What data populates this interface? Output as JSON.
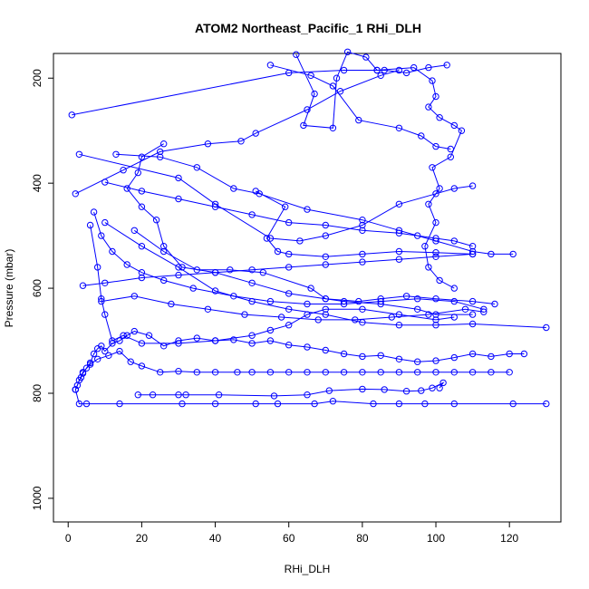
{
  "chart_data": {
    "type": "line",
    "title": "ATOM2 Northeast_Pacific_1 RHi_DLH",
    "xlabel": "RHi_DLH",
    "ylabel": "Pressure (mbar)",
    "xlim": [
      -4,
      134
    ],
    "ylim": [
      1045,
      153
    ],
    "y_axis_reversed": true,
    "x_ticks": [
      0,
      20,
      40,
      60,
      80,
      100,
      120
    ],
    "y_ticks": [
      200,
      400,
      600,
      800,
      1000
    ],
    "x_tick_labels": [
      "0",
      "20",
      "40",
      "60",
      "80",
      "100",
      "120"
    ],
    "y_tick_labels": [
      "200",
      "400",
      "600",
      "800",
      "1000"
    ],
    "grid": false,
    "legend": "none",
    "series_color": "#0000ff",
    "marker": "open-circle",
    "series": [
      {
        "points": [
          [
            2,
            793
          ],
          [
            2.5,
            785
          ],
          [
            3,
            775
          ],
          [
            3.5,
            770
          ],
          [
            4,
            762
          ],
          [
            5,
            752
          ],
          [
            6,
            742
          ],
          [
            7,
            725
          ],
          [
            8,
            715
          ],
          [
            9,
            710
          ],
          [
            10,
            720
          ],
          [
            12,
            705
          ],
          [
            14,
            700
          ],
          [
            16,
            690
          ],
          [
            18,
            682
          ],
          [
            22,
            690
          ],
          [
            26,
            710
          ],
          [
            30,
            700
          ],
          [
            35,
            695
          ],
          [
            40,
            700
          ],
          [
            45,
            698
          ],
          [
            50,
            705
          ],
          [
            55,
            700
          ],
          [
            60,
            708
          ],
          [
            65,
            712
          ],
          [
            70,
            718
          ],
          [
            75,
            725
          ],
          [
            80,
            730
          ],
          [
            85,
            728
          ],
          [
            90,
            735
          ],
          [
            95,
            740
          ],
          [
            100,
            738
          ],
          [
            105,
            732
          ],
          [
            110,
            725
          ],
          [
            115,
            730
          ],
          [
            120,
            725
          ],
          [
            124,
            725
          ]
        ]
      },
      {
        "points": [
          [
            2,
            793
          ],
          [
            3,
            820
          ],
          [
            5,
            820
          ],
          [
            14,
            820
          ],
          [
            31,
            820
          ],
          [
            40,
            820
          ],
          [
            51,
            820
          ],
          [
            57,
            820
          ],
          [
            67,
            820
          ],
          [
            72,
            815
          ],
          [
            83,
            820
          ],
          [
            90,
            820
          ],
          [
            97,
            820
          ],
          [
            105,
            820
          ],
          [
            121,
            820
          ],
          [
            130,
            820
          ]
        ]
      },
      {
        "points": [
          [
            2,
            793
          ],
          [
            4,
            760
          ],
          [
            6,
            745
          ],
          [
            8,
            735
          ],
          [
            11,
            728
          ],
          [
            14,
            720
          ],
          [
            17,
            740
          ],
          [
            20,
            748
          ],
          [
            25,
            760
          ],
          [
            30,
            758
          ],
          [
            35,
            760
          ],
          [
            40,
            760
          ],
          [
            46,
            760
          ],
          [
            50,
            760
          ],
          [
            55,
            760
          ],
          [
            60,
            760
          ],
          [
            65,
            760
          ],
          [
            70,
            760
          ],
          [
            75,
            760
          ],
          [
            80,
            760
          ],
          [
            85,
            760
          ],
          [
            90,
            760
          ],
          [
            95,
            760
          ],
          [
            100,
            760
          ],
          [
            105,
            760
          ],
          [
            110,
            760
          ],
          [
            115,
            760
          ],
          [
            120,
            760
          ]
        ]
      },
      {
        "points": [
          [
            19,
            803
          ],
          [
            23,
            803
          ],
          [
            30,
            803
          ],
          [
            32,
            803
          ],
          [
            41,
            803
          ],
          [
            56,
            805
          ],
          [
            65,
            803
          ],
          [
            71,
            795
          ],
          [
            80,
            792
          ],
          [
            86,
            793
          ],
          [
            92,
            796
          ],
          [
            96,
            795
          ],
          [
            99,
            790
          ],
          [
            102,
            780
          ],
          [
            101,
            790
          ]
        ]
      },
      {
        "points": [
          [
            1,
            270
          ],
          [
            60,
            190
          ],
          [
            75,
            185
          ],
          [
            84,
            185
          ],
          [
            86,
            185
          ],
          [
            92,
            190
          ],
          [
            98,
            180
          ],
          [
            103,
            175
          ]
        ]
      },
      {
        "points": [
          [
            3,
            345
          ],
          [
            30,
            390
          ],
          [
            40,
            440
          ],
          [
            55,
            505
          ],
          [
            63,
            510
          ],
          [
            70,
            500
          ],
          [
            80,
            480
          ],
          [
            90,
            440
          ],
          [
            100,
            420
          ],
          [
            105,
            410
          ],
          [
            110,
            405
          ]
        ]
      },
      {
        "points": [
          [
            2,
            420
          ],
          [
            15,
            375
          ],
          [
            25,
            340
          ],
          [
            38,
            325
          ],
          [
            47,
            320
          ],
          [
            51,
            305
          ],
          [
            65,
            260
          ],
          [
            74,
            225
          ],
          [
            85,
            195
          ],
          [
            90,
            185
          ]
        ]
      },
      {
        "points": [
          [
            10,
            398
          ],
          [
            20,
            415
          ],
          [
            30,
            430
          ],
          [
            40,
            445
          ],
          [
            50,
            460
          ],
          [
            60,
            475
          ],
          [
            70,
            480
          ],
          [
            80,
            490
          ],
          [
            90,
            495
          ],
          [
            95,
            500
          ],
          [
            100,
            505
          ],
          [
            105,
            510
          ],
          [
            110,
            520
          ]
        ]
      },
      {
        "points": [
          [
            13,
            345
          ],
          [
            25,
            350
          ],
          [
            35,
            370
          ],
          [
            45,
            410
          ],
          [
            52,
            420
          ],
          [
            65,
            450
          ],
          [
            80,
            470
          ],
          [
            90,
            490
          ],
          [
            100,
            510
          ],
          [
            110,
            530
          ],
          [
            115,
            535
          ],
          [
            121,
            535
          ]
        ]
      },
      {
        "points": [
          [
            4,
            595
          ],
          [
            10,
            590
          ],
          [
            20,
            580
          ],
          [
            30,
            575
          ],
          [
            40,
            570
          ],
          [
            50,
            565
          ],
          [
            60,
            560
          ],
          [
            70,
            555
          ],
          [
            80,
            550
          ],
          [
            90,
            545
          ],
          [
            100,
            540
          ],
          [
            110,
            535
          ]
        ]
      },
      {
        "points": [
          [
            9,
            625
          ],
          [
            18,
            615
          ],
          [
            28,
            630
          ],
          [
            38,
            640
          ],
          [
            48,
            650
          ],
          [
            58,
            655
          ],
          [
            68,
            660
          ],
          [
            78,
            660
          ],
          [
            88,
            655
          ],
          [
            98,
            650
          ],
          [
            108,
            640
          ],
          [
            113,
            645
          ]
        ]
      },
      {
        "points": [
          [
            10,
            475
          ],
          [
            20,
            520
          ],
          [
            30,
            560
          ],
          [
            40,
            605
          ],
          [
            50,
            625
          ],
          [
            60,
            640
          ],
          [
            70,
            650
          ],
          [
            80,
            665
          ],
          [
            90,
            670
          ],
          [
            100,
            670
          ],
          [
            110,
            668
          ],
          [
            130,
            675
          ]
        ]
      },
      {
        "points": [
          [
            7,
            455
          ],
          [
            9,
            500
          ],
          [
            12,
            530
          ],
          [
            16,
            555
          ],
          [
            20,
            570
          ],
          [
            26,
            585
          ],
          [
            34,
            600
          ],
          [
            45,
            615
          ],
          [
            55,
            625
          ],
          [
            65,
            630
          ],
          [
            75,
            630
          ],
          [
            85,
            625
          ],
          [
            95,
            620
          ],
          [
            105,
            625
          ],
          [
            113,
            640
          ]
        ]
      },
      {
        "points": [
          [
            6,
            480
          ],
          [
            8,
            560
          ],
          [
            9,
            620
          ],
          [
            10,
            650
          ],
          [
            12,
            700
          ],
          [
            15,
            690
          ],
          [
            20,
            705
          ],
          [
            30,
            705
          ],
          [
            40,
            700
          ],
          [
            50,
            690
          ],
          [
            55,
            680
          ],
          [
            60,
            670
          ],
          [
            65,
            650
          ],
          [
            70,
            640
          ],
          [
            80,
            640
          ],
          [
            90,
            650
          ],
          [
            100,
            660
          ],
          [
            105,
            655
          ]
        ]
      },
      {
        "points": [
          [
            55,
            175
          ],
          [
            66,
            195
          ],
          [
            72,
            215
          ],
          [
            79,
            280
          ],
          [
            90,
            295
          ],
          [
            96,
            310
          ],
          [
            100,
            330
          ],
          [
            104,
            335
          ]
        ]
      },
      {
        "points": [
          [
            62,
            155
          ],
          [
            67,
            230
          ],
          [
            64,
            290
          ],
          [
            72,
            295
          ],
          [
            73,
            200
          ],
          [
            76,
            150
          ],
          [
            81,
            160
          ],
          [
            84,
            185
          ],
          [
            94,
            180
          ],
          [
            99,
            205
          ],
          [
            100,
            235
          ],
          [
            98,
            255
          ],
          [
            101,
            275
          ],
          [
            105,
            290
          ],
          [
            107,
            300
          ],
          [
            104,
            350
          ],
          [
            99,
            370
          ],
          [
            101,
            410
          ],
          [
            98,
            440
          ],
          [
            100,
            475
          ],
          [
            97,
            520
          ],
          [
            98,
            560
          ],
          [
            101,
            585
          ],
          [
            105,
            600
          ]
        ]
      },
      {
        "points": [
          [
            51,
            415
          ],
          [
            59,
            445
          ],
          [
            54,
            505
          ],
          [
            57,
            530
          ],
          [
            60,
            535
          ],
          [
            70,
            540
          ],
          [
            80,
            535
          ],
          [
            90,
            530
          ],
          [
            100,
            532
          ],
          [
            110,
            535
          ]
        ]
      },
      {
        "points": [
          [
            18,
            490
          ],
          [
            26,
            530
          ],
          [
            35,
            565
          ],
          [
            44,
            565
          ],
          [
            53,
            570
          ],
          [
            66,
            600
          ],
          [
            70,
            620
          ],
          [
            79,
            625
          ],
          [
            85,
            620
          ],
          [
            92,
            615
          ],
          [
            100,
            620
          ],
          [
            110,
            625
          ],
          [
            116,
            630
          ]
        ]
      },
      {
        "points": [
          [
            26,
            325
          ],
          [
            20,
            350
          ],
          [
            19,
            380
          ],
          [
            16,
            410
          ],
          [
            20,
            445
          ],
          [
            24,
            470
          ],
          [
            26,
            520
          ],
          [
            31,
            560
          ],
          [
            40,
            570
          ],
          [
            50,
            590
          ],
          [
            60,
            610
          ],
          [
            70,
            620
          ],
          [
            75,
            625
          ],
          [
            85,
            630
          ],
          [
            95,
            640
          ],
          [
            100,
            650
          ],
          [
            110,
            650
          ]
        ]
      }
    ]
  }
}
